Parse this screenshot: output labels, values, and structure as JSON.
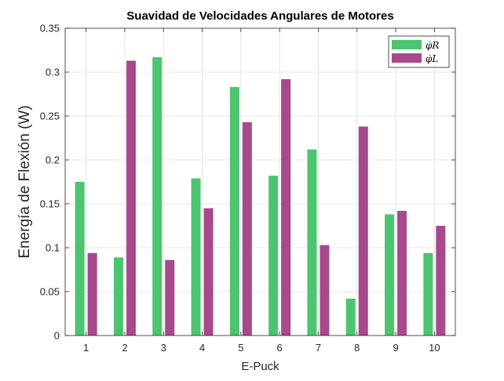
{
  "chart_data": {
    "type": "bar",
    "title": "Suavidad de Velocidades Angulares de Motores",
    "xlabel": "E-Puck",
    "ylabel": "Energía de Flexión (W)",
    "categories": [
      "1",
      "2",
      "3",
      "4",
      "5",
      "6",
      "7",
      "8",
      "9",
      "10"
    ],
    "series": [
      {
        "name": "φ̇R",
        "color": "#4DC46F",
        "values": [
          0.175,
          0.089,
          0.317,
          0.179,
          0.283,
          0.182,
          0.212,
          0.042,
          0.138,
          0.094
        ]
      },
      {
        "name": "φ̇L",
        "color": "#A8498C",
        "values": [
          0.094,
          0.313,
          0.086,
          0.145,
          0.243,
          0.292,
          0.103,
          0.238,
          0.142,
          0.125
        ]
      }
    ],
    "ylim": [
      0,
      0.35
    ],
    "yticks": [
      "0",
      "0.05",
      "0.1",
      "0.15",
      "0.2",
      "0.25",
      "0.3",
      "0.35"
    ],
    "grid": true,
    "legend_position": "top-right"
  }
}
